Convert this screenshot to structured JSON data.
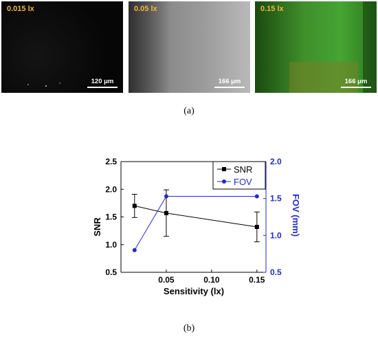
{
  "images": [
    {
      "label": "0.015 lx",
      "scale": "120 μm"
    },
    {
      "label": "0.05 lx",
      "scale": "166 μm"
    },
    {
      "label": "0.15 lx",
      "scale": "166 μm"
    }
  ],
  "captions": {
    "a": "(a)",
    "b": "(b)"
  },
  "colors": {
    "snr": "#000000",
    "fov": "#1f2ad1",
    "label_orange": "#f2b63c"
  },
  "chart_data": {
    "type": "line",
    "xlabel": "Sensitivity (lx)",
    "ylabel": "SNR",
    "y2label": "FOV (mm)",
    "x": [
      0.015,
      0.05,
      0.15
    ],
    "xlim": [
      0,
      0.16
    ],
    "xticks": [
      "0.05",
      "0.10",
      "0.15"
    ],
    "xtick_values": [
      0.05,
      0.1,
      0.15
    ],
    "ylim": [
      0.5,
      2.5
    ],
    "yticks": [
      "0.5",
      "1.0",
      "1.5",
      "2.0",
      "2.5"
    ],
    "ytick_values": [
      0.5,
      1.0,
      1.5,
      2.0,
      2.5
    ],
    "y2lim": [
      0.5,
      2.0
    ],
    "y2ticks": [
      "0.5",
      "1.0",
      "1.5",
      "2.0"
    ],
    "y2tick_values": [
      0.5,
      1.0,
      1.5,
      2.0
    ],
    "legend_position": "top-right",
    "series": [
      {
        "name": "SNR",
        "axis": "left",
        "marker": "square",
        "values": [
          1.7,
          1.57,
          1.32
        ],
        "err": [
          0.21,
          0.42,
          0.27
        ]
      },
      {
        "name": "FOV",
        "axis": "right",
        "marker": "circle",
        "values": [
          0.8,
          1.53,
          1.53
        ]
      }
    ]
  }
}
